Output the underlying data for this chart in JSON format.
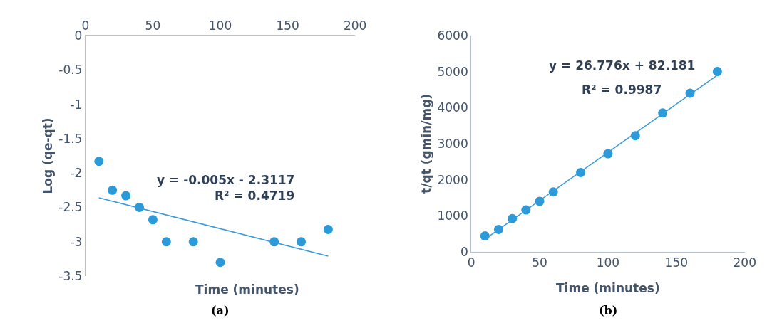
{
  "chart_data": [
    {
      "type": "scatter",
      "xlabel": "Time (minutes)",
      "ylabel": "Log (qe-qt)",
      "xlim": [
        0,
        200
      ],
      "xticks": [
        0,
        50,
        100,
        150,
        200
      ],
      "ylim": [
        -3.5,
        0
      ],
      "yticks": [
        -3.5,
        -3,
        -2.5,
        -2,
        -1.5,
        -1,
        -0.5,
        0
      ],
      "marker": "circle",
      "series": [
        {
          "color": "#2a9ad8",
          "x": [
            10,
            20,
            30,
            40,
            50,
            60,
            80,
            100,
            140,
            160,
            180
          ],
          "values": [
            -1.83,
            -2.25,
            -2.33,
            -2.5,
            -2.68,
            -3.0,
            -3.0,
            -3.3,
            -3.0,
            -3.0,
            -2.82
          ]
        },
        {
          "type": "line",
          "marker": "none",
          "color": "#3a9ad9",
          "x": [
            10,
            180
          ],
          "values": [
            -2.36,
            -3.21
          ]
        }
      ],
      "annotations": [
        "y = -0.005x - 2.3117",
        "R² = 0.4719",
        "(a)"
      ]
    },
    {
      "type": "scatter",
      "xlabel": "Time (minutes)",
      "ylabel": "t/qt (gmin/mg)",
      "xlim": [
        0,
        200
      ],
      "xticks": [
        0,
        50,
        100,
        150,
        200
      ],
      "ylim": [
        0,
        6000
      ],
      "yticks": [
        0,
        1000,
        2000,
        3000,
        4000,
        5000,
        6000
      ],
      "marker": "circle",
      "series": [
        {
          "color": "#2a9ad8",
          "x": [
            10,
            20,
            30,
            40,
            50,
            60,
            80,
            100,
            120,
            140,
            160,
            180
          ],
          "values": [
            440,
            620,
            920,
            1160,
            1400,
            1660,
            2200,
            2720,
            3220,
            3850,
            4400,
            5000
          ]
        },
        {
          "type": "line",
          "marker": "none",
          "color": "#3a9ad9",
          "x": [
            10,
            180
          ],
          "values": [
            350,
            4900
          ]
        }
      ],
      "annotations": [
        "y = 26.776x + 82.181",
        "R² = 0.9987",
        "(b)"
      ]
    }
  ]
}
